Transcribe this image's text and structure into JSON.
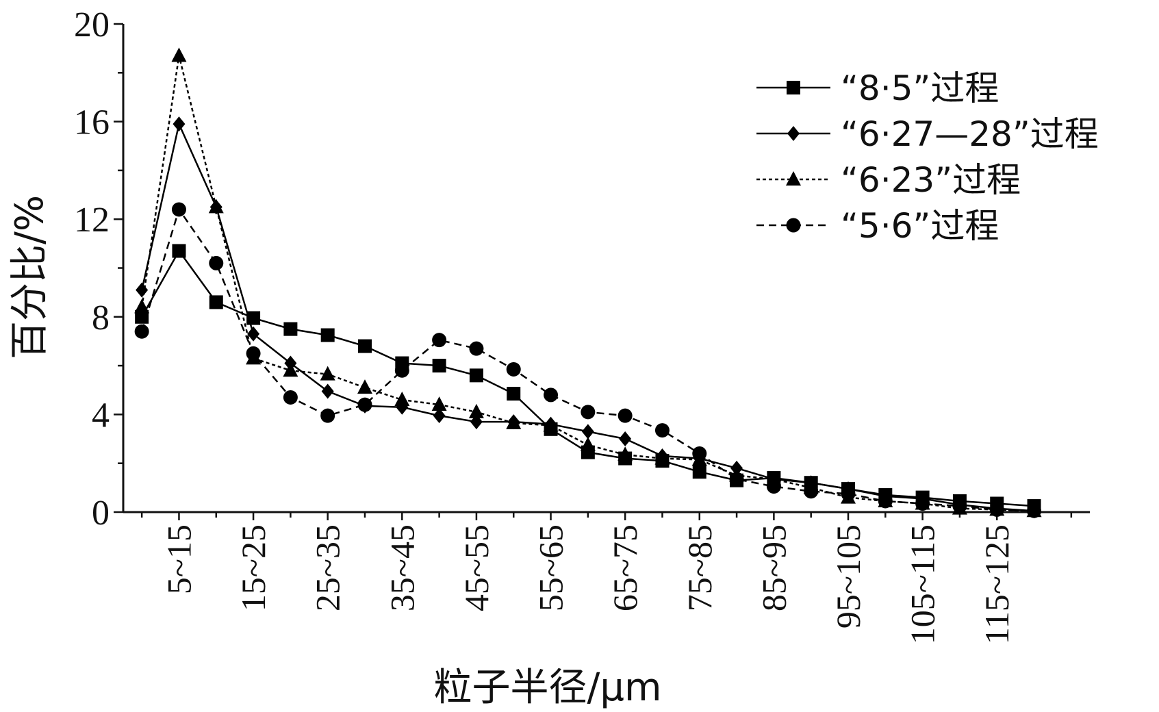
{
  "chart_data": {
    "type": "line",
    "xlabel": "粒子半径/μm",
    "ylabel": "百分比/%",
    "ylim": [
      0,
      20
    ],
    "yticks": [
      0,
      4,
      8,
      12,
      16,
      20
    ],
    "x": [
      0,
      10,
      20,
      30,
      40,
      50,
      60,
      70,
      80,
      90,
      100,
      110,
      120,
      130,
      140,
      150,
      160,
      170,
      180,
      190,
      200,
      210,
      220,
      230,
      240,
      250
    ],
    "category_labels": [
      {
        "label": "5~15",
        "x": 10
      },
      {
        "label": "15~25",
        "x": 30
      },
      {
        "label": "25~35",
        "x": 50
      },
      {
        "label": "35~45",
        "x": 70
      },
      {
        "label": "45~55",
        "x": 90
      },
      {
        "label": "55~65",
        "x": 110
      },
      {
        "label": "65~75",
        "x": 130
      },
      {
        "label": "75~85",
        "x": 150
      },
      {
        "label": "85~95",
        "x": 170
      },
      {
        "label": "95~105",
        "x": 190
      },
      {
        "label": "105~115",
        "x": 210
      },
      {
        "label": "115~125",
        "x": 230
      }
    ],
    "legend_position": "top-right",
    "series": [
      {
        "name": "“8·5”过程",
        "marker": "square",
        "dash": "solid",
        "values": [
          8.0,
          10.7,
          8.6,
          7.95,
          7.5,
          7.25,
          6.8,
          6.1,
          6.0,
          5.6,
          4.85,
          3.4,
          2.45,
          2.2,
          2.1,
          1.65,
          1.3,
          1.4,
          1.2,
          0.95,
          0.7,
          0.6,
          0.45,
          0.35,
          0.25,
          null
        ]
      },
      {
        "name": "“6·27—28”过程",
        "marker": "diamond",
        "dash": "solid",
        "values": [
          9.1,
          15.9,
          12.5,
          7.3,
          6.1,
          4.95,
          4.35,
          4.3,
          3.95,
          3.7,
          3.7,
          3.6,
          3.3,
          3.0,
          2.3,
          2.2,
          1.8,
          1.35,
          1.2,
          0.95,
          0.65,
          0.55,
          0.3,
          0.15,
          0.05,
          null
        ]
      },
      {
        "name": "“6·23”过程",
        "marker": "triangle",
        "dash": "dotted",
        "values": [
          8.4,
          18.7,
          12.5,
          6.3,
          5.8,
          5.65,
          5.1,
          4.6,
          4.4,
          4.1,
          3.65,
          3.55,
          2.75,
          2.35,
          2.2,
          2.15,
          1.5,
          1.35,
          1.0,
          0.6,
          0.45,
          0.35,
          0.15,
          0.1,
          0.05,
          null
        ]
      },
      {
        "name": "“5·6”过程",
        "marker": "circle",
        "dash": "dashed",
        "values": [
          7.4,
          12.4,
          10.2,
          6.5,
          4.7,
          3.95,
          4.4,
          5.8,
          7.05,
          6.7,
          5.85,
          4.8,
          4.1,
          3.95,
          3.35,
          2.4,
          1.35,
          1.05,
          0.85,
          0.75,
          0.45,
          0.35,
          0.25,
          0.1,
          0.05,
          null
        ]
      }
    ]
  }
}
